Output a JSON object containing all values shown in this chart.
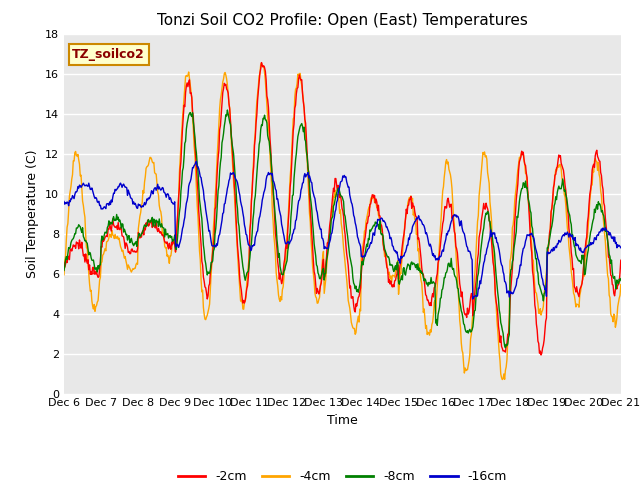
{
  "title": "Tonzi Soil CO2 Profile: Open (East) Temperatures",
  "xlabel": "Time",
  "ylabel": "Soil Temperature (C)",
  "ylim": [
    0,
    18
  ],
  "yticks": [
    0,
    2,
    4,
    6,
    8,
    10,
    12,
    14,
    16,
    18
  ],
  "x_tick_labels": [
    "Dec 6",
    "Dec 7",
    "Dec 8",
    "Dec 9",
    "Dec 10",
    "Dec 11",
    "Dec 12",
    "Dec 13",
    "Dec 14",
    "Dec 15",
    "Dec 16",
    "Dec 17",
    "Dec 18",
    "Dec 19",
    "Dec 20",
    "Dec 21"
  ],
  "legend_label": "TZ_soilco2",
  "series_labels": [
    "-2cm",
    "-4cm",
    "-8cm",
    "-16cm"
  ],
  "series_colors": [
    "#ff0000",
    "#ffa500",
    "#008000",
    "#0000cc"
  ],
  "plot_bg_color": "#e8e8e8",
  "title_fontsize": 11,
  "axis_fontsize": 9,
  "tick_fontsize": 8,
  "legend_fontsize": 9,
  "n_days": 15,
  "pts_per_day": 48
}
